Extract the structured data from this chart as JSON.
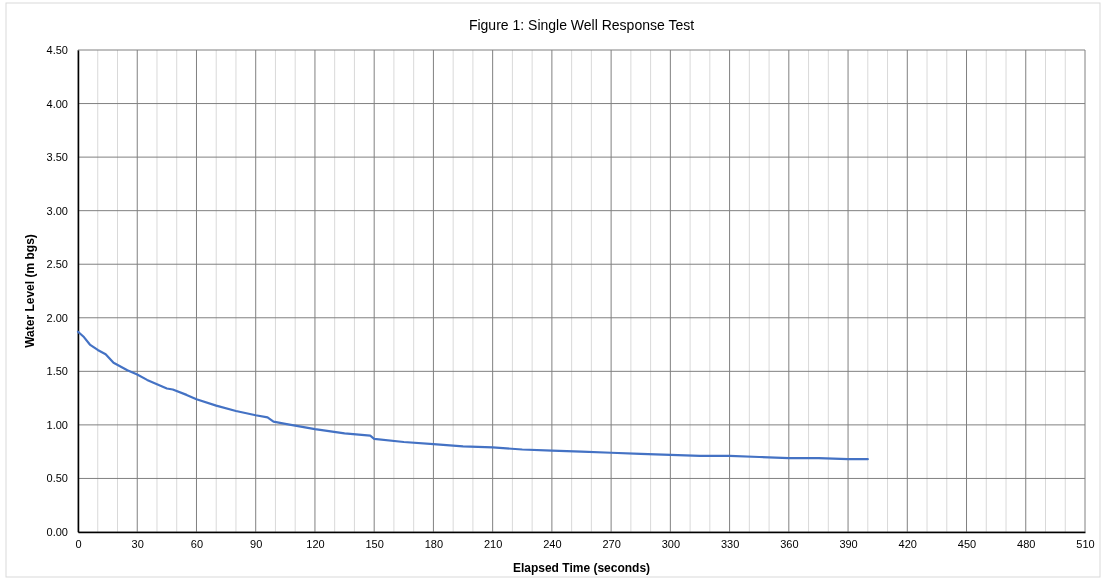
{
  "chart_data": {
    "type": "line",
    "title": "Figure 1: Single Well Response Test",
    "xlabel": "Elapsed Time (seconds)",
    "ylabel": "Water Level (m bgs)",
    "x": [
      0,
      3,
      6,
      10,
      14,
      18,
      25,
      30,
      35,
      40,
      45,
      48,
      55,
      60,
      70,
      80,
      90,
      96,
      99,
      105,
      120,
      135,
      148,
      150,
      165,
      180,
      195,
      210,
      225,
      240,
      255,
      270,
      285,
      300,
      315,
      330,
      345,
      360,
      375,
      390,
      400
    ],
    "series": [
      {
        "color": "#4472c4",
        "values": [
          1.87,
          1.82,
          1.75,
          1.7,
          1.66,
          1.58,
          1.51,
          1.47,
          1.42,
          1.38,
          1.34,
          1.33,
          1.28,
          1.24,
          1.18,
          1.13,
          1.09,
          1.07,
          1.03,
          1.01,
          0.96,
          0.92,
          0.9,
          0.87,
          0.84,
          0.82,
          0.8,
          0.79,
          0.77,
          0.76,
          0.75,
          0.74,
          0.73,
          0.72,
          0.71,
          0.71,
          0.7,
          0.69,
          0.69,
          0.68,
          0.68
        ]
      }
    ],
    "xlim": [
      0,
      510
    ],
    "xticks": [
      0,
      {
        "value": 10,
        "label": null
      },
      {
        "value": 20,
        "label": null
      },
      30,
      {
        "value": 40,
        "label": null
      },
      {
        "value": 50,
        "label": null
      },
      60,
      {
        "value": 70,
        "label": null
      },
      {
        "value": 80,
        "label": null
      },
      90,
      {
        "value": 100,
        "label": null
      },
      {
        "value": 110,
        "label": null
      },
      120,
      {
        "value": 130,
        "label": null
      },
      {
        "value": 140,
        "label": null
      },
      150,
      {
        "value": 160,
        "label": null
      },
      {
        "value": 170,
        "label": null
      },
      180,
      {
        "value": 190,
        "label": null
      },
      {
        "value": 200,
        "label": null
      },
      210,
      {
        "value": 220,
        "label": null
      },
      {
        "value": 230,
        "label": null
      },
      240,
      {
        "value": 250,
        "label": null
      },
      {
        "value": 260,
        "label": null
      },
      270,
      {
        "value": 280,
        "label": null
      },
      {
        "value": 290,
        "label": null
      },
      300,
      {
        "value": 310,
        "label": null
      },
      {
        "value": 320,
        "label": null
      },
      330,
      {
        "value": 340,
        "label": null
      },
      {
        "value": 350,
        "label": null
      },
      360,
      {
        "value": 370,
        "label": null
      },
      {
        "value": 380,
        "label": null
      },
      390,
      {
        "value": 400,
        "label": null
      },
      {
        "value": 410,
        "label": null
      },
      420,
      {
        "value": 430,
        "label": null
      },
      {
        "value": 440,
        "label": null
      },
      450,
      {
        "value": 460,
        "label": null
      },
      {
        "value": 470,
        "label": null
      },
      480,
      {
        "value": 490,
        "label": null
      },
      {
        "value": 500,
        "label": null
      },
      510
    ],
    "ylim": [
      0,
      4.5
    ],
    "yticks": [
      {
        "value": 0,
        "label": "0.00"
      },
      {
        "value": 0.5,
        "label": "0.50"
      },
      {
        "value": 1,
        "label": "1.00"
      },
      {
        "value": 1.5,
        "label": "1.50"
      },
      {
        "value": 2,
        "label": "2.00"
      },
      {
        "value": 2.5,
        "label": "2.50"
      },
      {
        "value": 3,
        "label": "3.00"
      },
      {
        "value": 3.5,
        "label": "3.50"
      },
      {
        "value": 4,
        "label": "4.00"
      },
      {
        "value": 4.5,
        "label": "4.50"
      }
    ],
    "grid": true,
    "marker": "none",
    "line_style": "solid"
  }
}
